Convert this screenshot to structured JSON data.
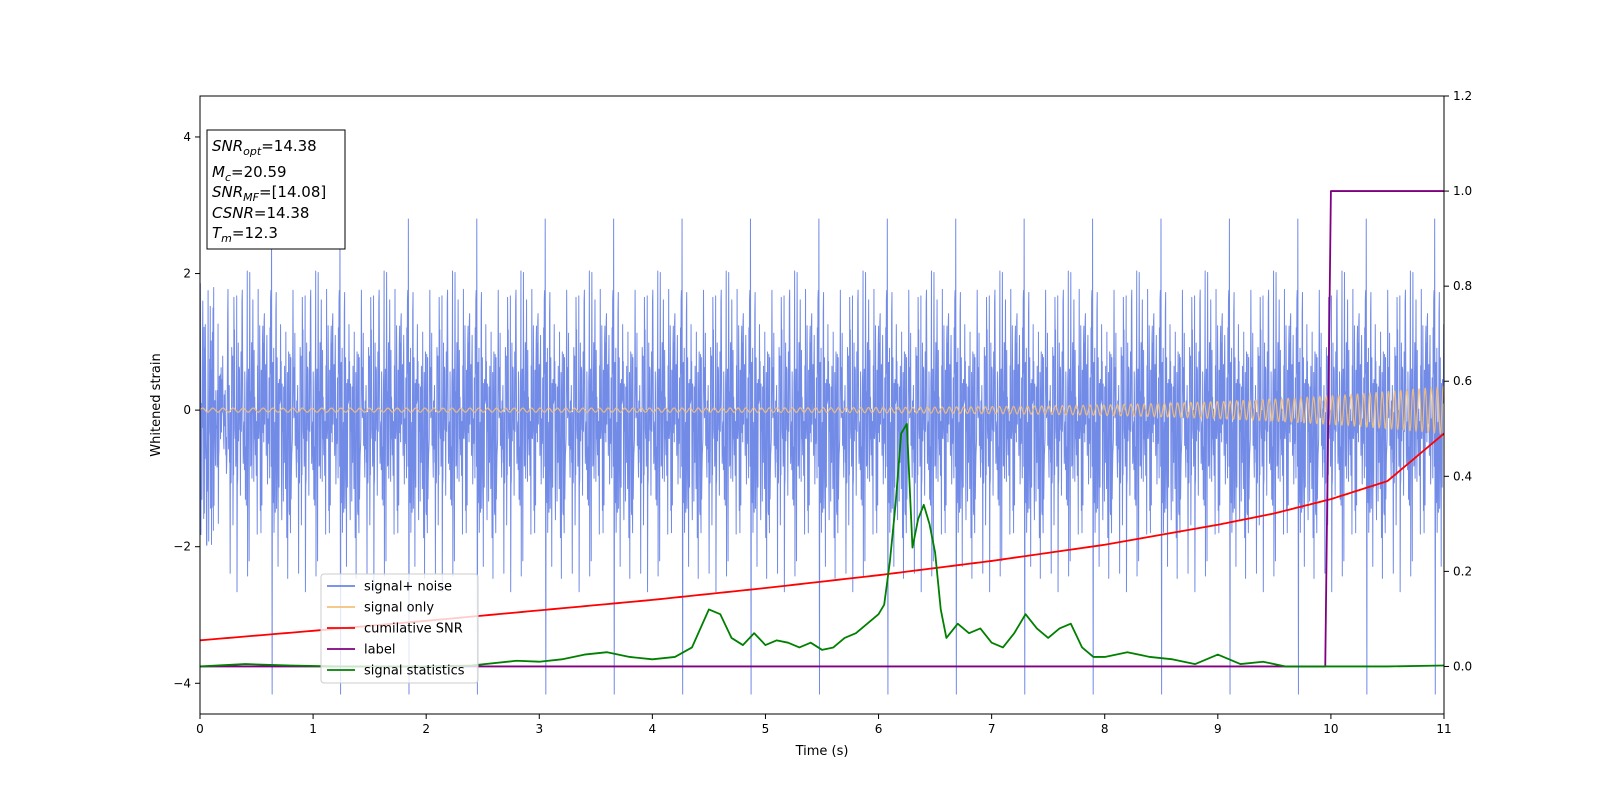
{
  "chart_data": {
    "type": "line",
    "xlabel": "Time (s)",
    "ylabel": "Whitened strain",
    "xlim": [
      0,
      11
    ],
    "ylim_left": [
      -4.45,
      4.6
    ],
    "ylim_right": [
      -0.1,
      1.2
    ],
    "xticks": [
      0,
      1,
      2,
      3,
      4,
      5,
      6,
      7,
      8,
      9,
      10,
      11
    ],
    "yticks_left": [
      -4,
      -2,
      0,
      2,
      4
    ],
    "yticks_right": [
      0.0,
      0.2,
      0.4,
      0.6,
      0.8,
      1.0,
      1.2
    ],
    "annotation": {
      "lines": [
        {
          "base": "SNR",
          "sub": "opt",
          "value": "=14.38"
        },
        {
          "base": "M",
          "sub": "c",
          "value": "=20.59"
        },
        {
          "base": "SNR",
          "sub": "MF",
          "value": "=[14.08]"
        },
        {
          "base": "CSNR",
          "sub": "",
          "value": "=14.38"
        },
        {
          "base": "T",
          "sub": "m",
          "value": "=12.3"
        }
      ]
    },
    "legend": {
      "placement": "lower-left",
      "entries": [
        {
          "label": "signal+ noise",
          "color": "#6a85e6"
        },
        {
          "label": "signal only",
          "color": "#f5c07a"
        },
        {
          "label": "cumilative SNR",
          "color": "#ff0000"
        },
        {
          "label": "label",
          "color": "#800080"
        },
        {
          "label": "signal statistics",
          "color": "#008000"
        }
      ]
    },
    "series": [
      {
        "name": "signal+ noise",
        "axis": "left",
        "color": "#6a85e6",
        "kind": "noise",
        "std": 1.05,
        "x_range": [
          0,
          11
        ]
      },
      {
        "name": "signal only",
        "axis": "left",
        "color": "#f5c07a",
        "kind": "chirp",
        "amplitude_start": 0.03,
        "amplitude_end": 0.35,
        "x_range": [
          0,
          11
        ]
      },
      {
        "name": "cumilative SNR",
        "axis": "right",
        "color": "#ff0000",
        "x": [
          0,
          1,
          2,
          3,
          4,
          5,
          6,
          7,
          8,
          9,
          9.5,
          10,
          10.5,
          11
        ],
        "y": [
          0.055,
          0.075,
          0.096,
          0.118,
          0.14,
          0.165,
          0.192,
          0.222,
          0.256,
          0.298,
          0.322,
          0.352,
          0.39,
          0.49
        ]
      },
      {
        "name": "label",
        "axis": "right",
        "color": "#800080",
        "x": [
          0,
          9.95,
          10.0,
          11
        ],
        "y": [
          0.0,
          0.0,
          1.0,
          1.0
        ]
      },
      {
        "name": "signal statistics",
        "axis": "right",
        "color": "#008000",
        "x": [
          0,
          0.4,
          0.8,
          1.2,
          1.6,
          2.0,
          2.4,
          2.8,
          3.0,
          3.2,
          3.4,
          3.6,
          3.8,
          4.0,
          4.2,
          4.35,
          4.5,
          4.6,
          4.7,
          4.8,
          4.9,
          5.0,
          5.1,
          5.2,
          5.3,
          5.4,
          5.5,
          5.6,
          5.7,
          5.8,
          5.9,
          6.0,
          6.05,
          6.1,
          6.15,
          6.2,
          6.25,
          6.3,
          6.35,
          6.4,
          6.45,
          6.5,
          6.55,
          6.6,
          6.7,
          6.8,
          6.9,
          7.0,
          7.1,
          7.2,
          7.3,
          7.4,
          7.5,
          7.6,
          7.7,
          7.8,
          7.9,
          8.0,
          8.2,
          8.4,
          8.6,
          8.8,
          9.0,
          9.2,
          9.4,
          9.6,
          9.8,
          9.95,
          10.0,
          10.5,
          11.0
        ],
        "y": [
          0.0,
          0.005,
          0.002,
          0.0,
          0.0,
          0.0,
          0.002,
          0.012,
          0.01,
          0.015,
          0.025,
          0.03,
          0.02,
          0.015,
          0.02,
          0.04,
          0.12,
          0.11,
          0.06,
          0.045,
          0.07,
          0.045,
          0.055,
          0.05,
          0.04,
          0.05,
          0.035,
          0.04,
          0.06,
          0.07,
          0.09,
          0.11,
          0.13,
          0.22,
          0.34,
          0.49,
          0.51,
          0.25,
          0.31,
          0.34,
          0.3,
          0.24,
          0.12,
          0.06,
          0.09,
          0.07,
          0.08,
          0.05,
          0.04,
          0.07,
          0.11,
          0.08,
          0.06,
          0.08,
          0.09,
          0.04,
          0.02,
          0.02,
          0.03,
          0.02,
          0.015,
          0.005,
          0.025,
          0.005,
          0.01,
          0.0,
          0.0,
          0.0,
          0.0,
          0.0,
          0.002
        ]
      }
    ]
  }
}
